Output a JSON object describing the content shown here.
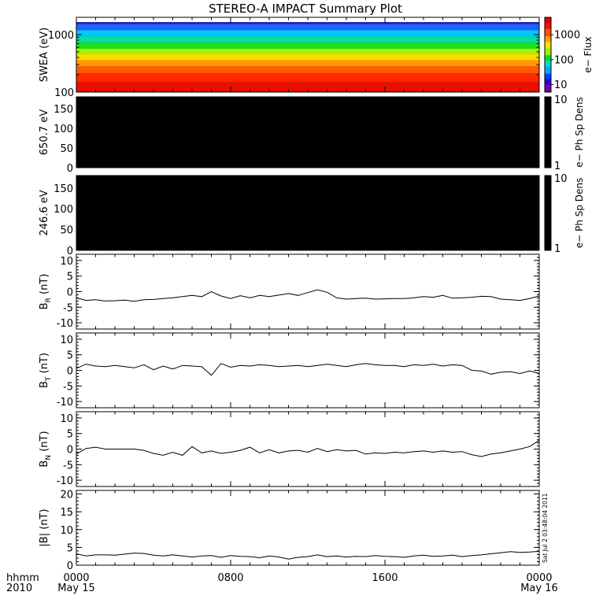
{
  "title": "STEREO-A IMPACT Summary Plot",
  "stamp": "Sat Jul  2 03:48:04 2011",
  "time_axis": {
    "label_lines": [
      "hhmm",
      "2010"
    ],
    "ticks": [
      {
        "t": 0,
        "label": "0000",
        "sub": "May 15"
      },
      {
        "t": 8,
        "label": "0800",
        "sub": ""
      },
      {
        "t": 16,
        "label": "1600",
        "sub": ""
      },
      {
        "t": 24,
        "label": "0000",
        "sub": "May 16"
      }
    ]
  },
  "chart_data": [
    {
      "type": "heatmap",
      "ylabel": "SWEA (eV)",
      "yscale": "log",
      "ylim": [
        100,
        2000
      ],
      "yticks": [
        {
          "v": 100,
          "label": "100"
        },
        {
          "v": 1000,
          "label": "1000"
        }
      ],
      "colorbar": {
        "label": "e− Flux",
        "scale": "log",
        "range": [
          5,
          5000
        ],
        "ticks": [
          "10",
          "100",
          "1000"
        ]
      },
      "bands_eV": [
        {
          "v": 1700,
          "color": "#2020c8"
        },
        {
          "v": 1350,
          "color": "#1a66ff"
        },
        {
          "v": 1050,
          "color": "#00c8ff"
        },
        {
          "v": 820,
          "color": "#00e0a0"
        },
        {
          "v": 640,
          "color": "#20e020"
        },
        {
          "v": 500,
          "color": "#b0ee00"
        },
        {
          "v": 400,
          "color": "#ffd800"
        },
        {
          "v": 320,
          "color": "#ff9a00"
        },
        {
          "v": 250,
          "color": "#ff5a00"
        },
        {
          "v": 180,
          "color": "#ff2a00"
        },
        {
          "v": 125,
          "color": "#e81000"
        }
      ]
    },
    {
      "type": "heatmap",
      "ylabel": "650.7 eV",
      "ylim": [
        0,
        180
      ],
      "yticks": [
        "0",
        "50",
        "100",
        "150"
      ],
      "fill": "#000000",
      "colorbar": {
        "label": "e− Ph Sp Dens",
        "range": [
          1,
          10
        ],
        "ticks": [
          "1",
          "10"
        ]
      }
    },
    {
      "type": "heatmap",
      "ylabel": "246.6 eV",
      "ylim": [
        0,
        180
      ],
      "yticks": [
        "0",
        "50",
        "100",
        "150"
      ],
      "fill": "#000000",
      "colorbar": {
        "label": "e− Ph Sp Dens",
        "range": [
          1,
          10
        ],
        "ticks": [
          "1",
          "10"
        ]
      }
    },
    {
      "type": "line",
      "ylabel": "B",
      "ylabel_sub": "R",
      "ylabel_unit": "(nT)",
      "ylim": [
        -12,
        12
      ],
      "yticks": [
        "-10",
        "-5",
        "0",
        "5",
        "10"
      ],
      "x": [
        0,
        0.5,
        1,
        1.5,
        2,
        2.5,
        3,
        3.5,
        4,
        4.5,
        5,
        5.5,
        6,
        6.5,
        7,
        7.5,
        8,
        8.5,
        9,
        9.5,
        10,
        10.5,
        11,
        11.5,
        12,
        12.5,
        13,
        13.5,
        14,
        14.5,
        15,
        15.5,
        16,
        16.5,
        17,
        17.5,
        18,
        18.5,
        19,
        19.5,
        20,
        20.5,
        21,
        21.5,
        22,
        22.5,
        23,
        23.5,
        24
      ],
      "y": [
        -2,
        -2.8,
        -2.6,
        -3,
        -2.9,
        -2.7,
        -3.1,
        -2.6,
        -2.5,
        -2.2,
        -2,
        -1.6,
        -1.2,
        -1.6,
        0,
        -1.4,
        -2.2,
        -1.3,
        -2,
        -1.2,
        -1.6,
        -1.1,
        -0.6,
        -1.2,
        -0.3,
        0.6,
        -0.2,
        -2,
        -2.4,
        -2.2,
        -2.1,
        -2.4,
        -2.3,
        -2.2,
        -2.2,
        -2,
        -1.6,
        -1.8,
        -1.2,
        -2.1,
        -2,
        -1.8,
        -1.5,
        -1.6,
        -2.4,
        -2.6,
        -2.8,
        -2.2,
        -1.4
      ]
    },
    {
      "type": "line",
      "ylabel": "B",
      "ylabel_sub": "T",
      "ylabel_unit": "(nT)",
      "ylim": [
        -12,
        12
      ],
      "yticks": [
        "-10",
        "-5",
        "0",
        "5",
        "10"
      ],
      "x": [
        0,
        0.5,
        1,
        1.5,
        2,
        2.5,
        3,
        3.5,
        4,
        4.5,
        5,
        5.5,
        6,
        6.5,
        7,
        7.5,
        8,
        8.5,
        9,
        9.5,
        10,
        10.5,
        11,
        11.5,
        12,
        12.5,
        13,
        13.5,
        14,
        14.5,
        15,
        15.5,
        16,
        16.5,
        17,
        17.5,
        18,
        18.5,
        19,
        19.5,
        20,
        20.5,
        21,
        21.5,
        22,
        22.5,
        23,
        23.5,
        24
      ],
      "y": [
        0.6,
        2,
        1.4,
        1.2,
        1.6,
        1.2,
        0.8,
        1.8,
        0.2,
        1.4,
        0.4,
        1.6,
        1.4,
        1.2,
        -1.6,
        2.2,
        1,
        1.6,
        1.4,
        1.8,
        1.6,
        1.2,
        1.4,
        1.6,
        1.2,
        1.6,
        2,
        1.6,
        1.2,
        1.8,
        2.2,
        1.8,
        1.6,
        1.6,
        1.2,
        1.8,
        1.6,
        2,
        1.4,
        1.8,
        1.6,
        0,
        -0.2,
        -1.2,
        -0.6,
        -0.4,
        -1,
        -0.2,
        -1
      ]
    },
    {
      "type": "line",
      "ylabel": "B",
      "ylabel_sub": "N",
      "ylabel_unit": "(nT)",
      "ylim": [
        -12,
        12
      ],
      "yticks": [
        "-10",
        "-5",
        "0",
        "5",
        "10"
      ],
      "x": [
        0,
        0.5,
        1,
        1.5,
        2,
        2.5,
        3,
        3.5,
        4,
        4.5,
        5,
        5.5,
        6,
        6.5,
        7,
        7.5,
        8,
        8.5,
        9,
        9.5,
        10,
        10.5,
        11,
        11.5,
        12,
        12.5,
        13,
        13.5,
        14,
        14.5,
        15,
        15.5,
        16,
        16.5,
        17,
        17.5,
        18,
        18.5,
        19,
        19.5,
        20,
        20.5,
        21,
        21.5,
        22,
        22.5,
        23,
        23.5,
        24
      ],
      "y": [
        -1.6,
        0.2,
        0.6,
        0,
        0,
        0,
        0,
        -0.4,
        -1.4,
        -2,
        -1,
        -2,
        0.8,
        -1.2,
        -0.6,
        -1.4,
        -1,
        -0.4,
        0.6,
        -1.2,
        -0.2,
        -1.2,
        -0.6,
        -0.4,
        -1,
        0.2,
        -0.8,
        -0.2,
        -0.6,
        -0.4,
        -1.6,
        -1.2,
        -1.4,
        -1,
        -1.2,
        -0.8,
        -0.6,
        -1,
        -0.6,
        -1,
        -0.8,
        -1.8,
        -2.4,
        -1.6,
        -1.2,
        -0.6,
        0,
        0.8,
        2.8
      ]
    },
    {
      "type": "line",
      "ylabel": "|B|",
      "ylabel_unit": "(nT)",
      "ylim": [
        0,
        21
      ],
      "yticks": [
        "0",
        "5",
        "10",
        "15",
        "20"
      ],
      "x": [
        0,
        0.5,
        1,
        1.5,
        2,
        2.5,
        3,
        3.5,
        4,
        4.5,
        5,
        5.5,
        6,
        6.5,
        7,
        7.5,
        8,
        8.5,
        9,
        9.5,
        10,
        10.5,
        11,
        11.5,
        12,
        12.5,
        13,
        13.5,
        14,
        14.5,
        15,
        15.5,
        16,
        16.5,
        17,
        17.5,
        18,
        18.5,
        19,
        19.5,
        20,
        20.5,
        21,
        21.5,
        22,
        22.5,
        23,
        23.5,
        24
      ],
      "y": [
        3.2,
        2.6,
        2.9,
        2.9,
        2.8,
        3.1,
        3.4,
        3.3,
        2.8,
        2.6,
        2.9,
        2.6,
        2.3,
        2.6,
        2.7,
        2.2,
        2.7,
        2.5,
        2.4,
        2.1,
        2.6,
        2.3,
        1.7,
        2.2,
        2.4,
        2.9,
        2.4,
        2.6,
        2.3,
        2.5,
        2.4,
        2.7,
        2.5,
        2.4,
        2.2,
        2.6,
        2.8,
        2.5,
        2.6,
        2.8,
        2.4,
        2.7,
        2.9,
        3.2,
        3.5,
        3.8,
        3.6,
        3.7,
        3.9
      ]
    }
  ]
}
